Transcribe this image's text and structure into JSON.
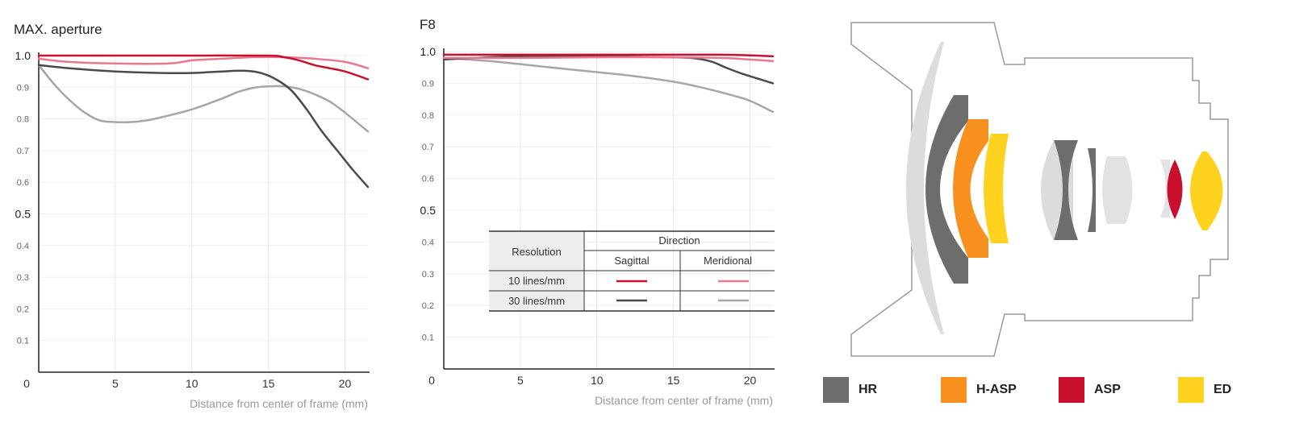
{
  "chart_data": [
    {
      "type": "line",
      "title": "MAX. aperture",
      "xlabel": "Distance from center of frame (mm)",
      "ylabel": "",
      "xlim": [
        0,
        21.5
      ],
      "ylim": [
        0,
        1.0
      ],
      "x_ticks": [
        0,
        5,
        10,
        15,
        20
      ],
      "y_ticks": [
        0.1,
        0.2,
        0.3,
        0.4,
        0.5,
        0.6,
        0.7,
        0.8,
        0.9,
        1.0
      ],
      "y_major_ticks": [
        0.5,
        1.0
      ],
      "grid": true,
      "series": [
        {
          "key": "sag10",
          "color": "#c8102e",
          "x": [
            0,
            5,
            10,
            15,
            16,
            17,
            18,
            19,
            20,
            21.5
          ],
          "y": [
            1.0,
            1.0,
            1.0,
            1.0,
            0.995,
            0.985,
            0.97,
            0.96,
            0.95,
            0.925
          ]
        },
        {
          "key": "mer10",
          "color": "#e8778f",
          "x": [
            0,
            2,
            5,
            8.5,
            10,
            12,
            14,
            16,
            18,
            20,
            21.5
          ],
          "y": [
            0.99,
            0.98,
            0.975,
            0.975,
            0.985,
            0.99,
            0.995,
            0.995,
            0.99,
            0.98,
            0.96
          ]
        },
        {
          "key": "sag30",
          "color": "#4a4a4a",
          "x": [
            0,
            2,
            5,
            8,
            10,
            12,
            13.5,
            14.5,
            15.5,
            16.5,
            17.5,
            18.5,
            19.5,
            20.5,
            21.5
          ],
          "y": [
            0.97,
            0.96,
            0.95,
            0.945,
            0.945,
            0.95,
            0.952,
            0.945,
            0.925,
            0.89,
            0.83,
            0.76,
            0.7,
            0.64,
            0.585
          ]
        },
        {
          "key": "mer30",
          "color": "#a6a6a6",
          "x": [
            0,
            1,
            2,
            3,
            4,
            5,
            6,
            7,
            8,
            10,
            12,
            13,
            14,
            15,
            16,
            17,
            18,
            19,
            20,
            21.5
          ],
          "y": [
            0.97,
            0.91,
            0.86,
            0.82,
            0.795,
            0.79,
            0.79,
            0.795,
            0.805,
            0.83,
            0.865,
            0.885,
            0.898,
            0.903,
            0.903,
            0.895,
            0.878,
            0.855,
            0.82,
            0.76
          ]
        }
      ]
    },
    {
      "type": "line",
      "title": "F8",
      "xlabel": "Distance from center of frame (mm)",
      "ylabel": "",
      "xlim": [
        0,
        21.5
      ],
      "ylim": [
        0,
        1.0
      ],
      "x_ticks": [
        0,
        5,
        10,
        15,
        20
      ],
      "y_ticks": [
        0.1,
        0.2,
        0.3,
        0.4,
        0.5,
        0.6,
        0.7,
        0.8,
        0.9,
        1.0
      ],
      "y_major_ticks": [
        0.5,
        1.0
      ],
      "grid": true,
      "series": [
        {
          "key": "sag10",
          "color": "#c8102e",
          "x": [
            0,
            5,
            10,
            15,
            18,
            20,
            21.5
          ],
          "y": [
            0.99,
            0.99,
            0.99,
            0.99,
            0.99,
            0.988,
            0.985
          ]
        },
        {
          "key": "mer10",
          "color": "#e8778f",
          "x": [
            0,
            5,
            10,
            15,
            18,
            20,
            21.5
          ],
          "y": [
            0.98,
            0.98,
            0.982,
            0.982,
            0.98,
            0.975,
            0.97
          ]
        },
        {
          "key": "sag30",
          "color": "#4a4a4a",
          "x": [
            0,
            2,
            5,
            10,
            15,
            16.5,
            17.5,
            18.5,
            19.5,
            20.5,
            21.5
          ],
          "y": [
            0.975,
            0.98,
            0.985,
            0.985,
            0.982,
            0.978,
            0.968,
            0.948,
            0.93,
            0.915,
            0.9
          ]
        },
        {
          "key": "mer30",
          "color": "#a6a6a6",
          "x": [
            0,
            3,
            6,
            9,
            12,
            15,
            17,
            19,
            20,
            21.5
          ],
          "y": [
            0.98,
            0.97,
            0.955,
            0.94,
            0.925,
            0.905,
            0.885,
            0.86,
            0.845,
            0.81
          ]
        }
      ]
    }
  ],
  "legend_table": {
    "resolution_header": "Resolution",
    "direction_header": "Direction",
    "col_sagittal": "Sagittal",
    "col_meridional": "Meridional",
    "row_10": "10 lines/mm",
    "row_30": "30 lines/mm",
    "sag10_color": "#c8102e",
    "mer10_color": "#e8778f",
    "sag30_color": "#4a4a4a",
    "mer30_color": "#a6a6a6"
  },
  "lens_legend": [
    {
      "label": "HR",
      "color": "#6d6d6d"
    },
    {
      "label": "H-ASP",
      "color": "#f7901e"
    },
    {
      "label": "ASP",
      "color": "#c8102e"
    },
    {
      "label": "ED",
      "color": "#ffd21f"
    }
  ]
}
